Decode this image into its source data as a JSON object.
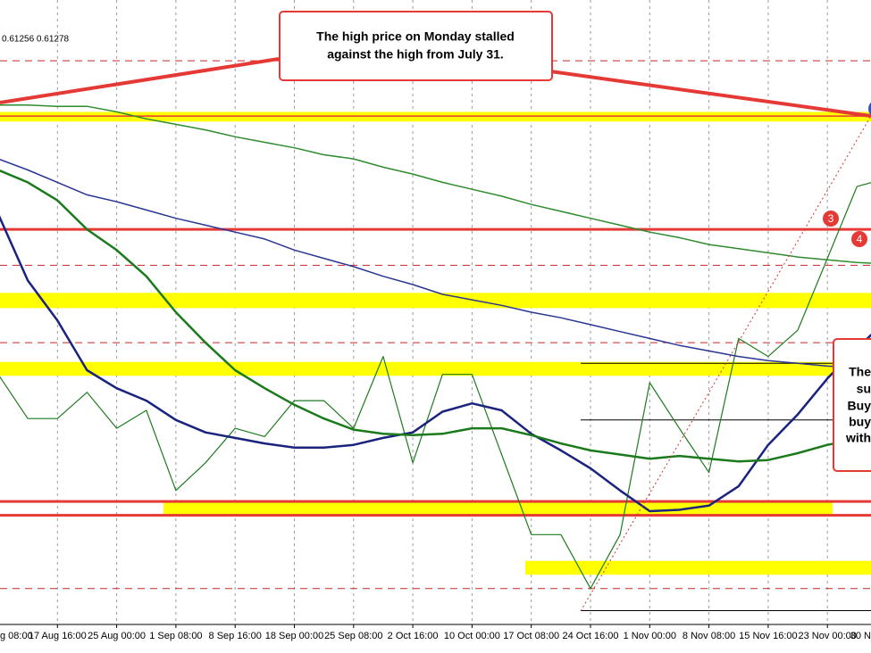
{
  "chart_data": {
    "type": "line",
    "header_text": "0.61256 0.61278",
    "callout": [
      "The high price on Monday stalled",
      "against the high from July 31."
    ],
    "side_note": [
      "The",
      "su",
      "Buy",
      "buy",
      "with"
    ],
    "markers": [
      {
        "label": "3",
        "color": "#e53935"
      },
      {
        "label": "4",
        "color": "#e53935"
      }
    ],
    "categories": [
      "g 08:00",
      null,
      "17 Aug 16:00",
      null,
      "25 Aug 00:00",
      null,
      "1 Sep 08:00",
      null,
      "8 Sep 16:00",
      null,
      "18 Sep 00:00",
      null,
      "25 Sep 08:00",
      null,
      "2 Oct 16:00",
      null,
      "10 Oct 00:00",
      null,
      "17 Oct 08:00",
      null,
      "24 Oct 16:00",
      null,
      "1 Nov 00:00",
      null,
      "8 Nov 08:00",
      null,
      "15 Nov 16:00",
      null,
      "23 Nov 00:00",
      null,
      "30 N"
    ],
    "series": [
      {
        "color": "#1e7b1e",
        "width": 1.2,
        "values": [
          0.5943,
          0.5911,
          0.5911,
          0.593,
          0.5904,
          0.5917,
          0.5859,
          0.5879,
          0.5904,
          0.5898,
          0.5924,
          0.5924,
          0.5904,
          0.5956,
          0.5879,
          0.5943,
          0.5943,
          0.5885,
          0.5827,
          0.5827,
          0.5788,
          0.5827,
          0.5937,
          0.5904,
          0.5872,
          0.5969,
          0.5956,
          0.5975,
          0.6027,
          0.6079,
          0.6085
        ]
      },
      {
        "color": "#1a237e",
        "width": 2.5,
        "values": [
          0.6059,
          0.6011,
          0.5982,
          0.5946,
          0.5933,
          0.5924,
          0.591,
          0.5901,
          0.5897,
          0.5893,
          0.589,
          0.589,
          0.5892,
          0.5897,
          0.5901,
          0.5916,
          0.5922,
          0.5917,
          0.59,
          0.5888,
          0.5875,
          0.5859,
          0.5844,
          0.5845,
          0.5848,
          0.5862,
          0.5892,
          0.5914,
          0.594,
          0.5962,
          0.5982
        ]
      },
      {
        "color": "#1b7a1b",
        "width": 2.5,
        "values": [
          0.6091,
          0.6082,
          0.6069,
          0.6048,
          0.6033,
          0.6014,
          0.5988,
          0.5966,
          0.5946,
          0.5933,
          0.5921,
          0.5911,
          0.5903,
          0.59,
          0.5899,
          0.59,
          0.5904,
          0.5904,
          0.5899,
          0.5893,
          0.5888,
          0.5885,
          0.5882,
          0.5884,
          0.5882,
          0.588,
          0.5881,
          0.5886,
          0.5892,
          0.5896,
          0.5899
        ]
      },
      {
        "color": "#2e8b2e",
        "width": 1.5,
        "values": [
          0.6138,
          0.6138,
          0.6137,
          0.6137,
          0.6133,
          0.6128,
          0.6124,
          0.612,
          0.6115,
          0.6111,
          0.6107,
          0.6102,
          0.6099,
          0.6093,
          0.6088,
          0.6082,
          0.6077,
          0.6072,
          0.6066,
          0.6061,
          0.6056,
          0.6051,
          0.6046,
          0.6042,
          0.6037,
          0.6034,
          0.6031,
          0.6028,
          0.6026,
          0.6024,
          0.6023
        ]
      },
      {
        "color": "#283593",
        "width": 1.5,
        "values": [
          0.6099,
          0.6091,
          0.6082,
          0.6073,
          0.6068,
          0.6062,
          0.6056,
          0.6051,
          0.6046,
          0.6041,
          0.6033,
          0.6027,
          0.6021,
          0.6014,
          0.6008,
          0.6001,
          0.5997,
          0.5993,
          0.5988,
          0.5984,
          0.5979,
          0.5974,
          0.5969,
          0.5964,
          0.596,
          0.5956,
          0.5953,
          0.5951,
          0.5949,
          0.5948,
          0.5947
        ]
      }
    ],
    "bands": [
      {
        "from": 0.6126,
        "to": 0.6133,
        "color": "#ffff00"
      },
      {
        "from": 0.5991,
        "to": 0.6002,
        "color": "#ffff00"
      },
      {
        "from": 0.5942,
        "to": 0.5952,
        "color": "#ffff00"
      },
      {
        "from": 0.5841,
        "to": 0.5851,
        "color": "#ffff00"
      },
      {
        "from": 0.5798,
        "to": 0.5808,
        "color": "#ffff00"
      }
    ],
    "levels": [
      {
        "value": 0.613,
        "color": "#e53935",
        "style": "solid"
      },
      {
        "value": 0.6048,
        "color": "#e53935",
        "style": "solid"
      },
      {
        "value": 0.5851,
        "color": "#e53935",
        "style": "solid"
      },
      {
        "value": 0.5841,
        "color": "#e53935",
        "style": "solid"
      },
      {
        "value": 0.617,
        "color": "#c62828",
        "style": "dashed"
      },
      {
        "value": 0.6022,
        "color": "#c62828",
        "style": "dashed"
      },
      {
        "value": 0.5966,
        "color": "#c62828",
        "style": "dashed"
      },
      {
        "value": 0.5788,
        "color": "#c62828",
        "style": "dashed"
      },
      {
        "value": 0.5951,
        "color": "#000000",
        "style": "thin"
      },
      {
        "value": 0.591,
        "color": "#000000",
        "style": "thin"
      },
      {
        "value": 0.5772,
        "color": "#000000",
        "style": "thin"
      }
    ],
    "ylim": [
      0.5762,
      0.6214
    ],
    "grid": true
  }
}
